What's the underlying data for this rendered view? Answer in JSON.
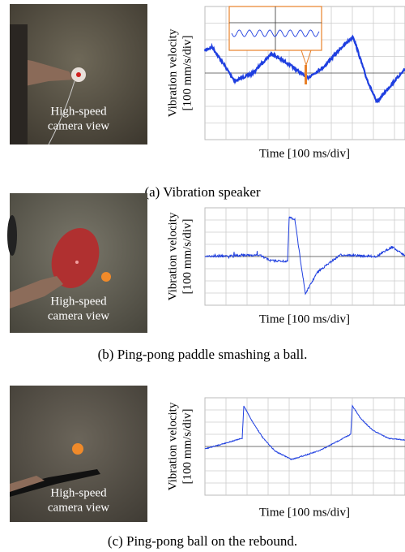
{
  "panels": [
    {
      "photo_label": [
        "High-speed",
        "camera view"
      ],
      "y_label": [
        "Vibration velocity",
        "[100 mm/s/div]"
      ],
      "x_label": "Time [100 ms/div]",
      "caption": "(a) Vibration speaker"
    },
    {
      "photo_label": [
        "High-speed",
        "camera view"
      ],
      "y_label": [
        "Vibration velocity",
        "[100 mm/s/div]"
      ],
      "x_label": "Time [100 ms/div]",
      "caption": "(b) Ping-pong paddle smashing a ball."
    },
    {
      "photo_label": [
        "High-speed",
        "camera view"
      ],
      "y_label": [
        "Vibration velocity",
        "[100 mm/s/div]"
      ],
      "x_label": "Time [100 ms/div]",
      "caption": "(c) Ping-pong ball on the rebound."
    }
  ]
}
